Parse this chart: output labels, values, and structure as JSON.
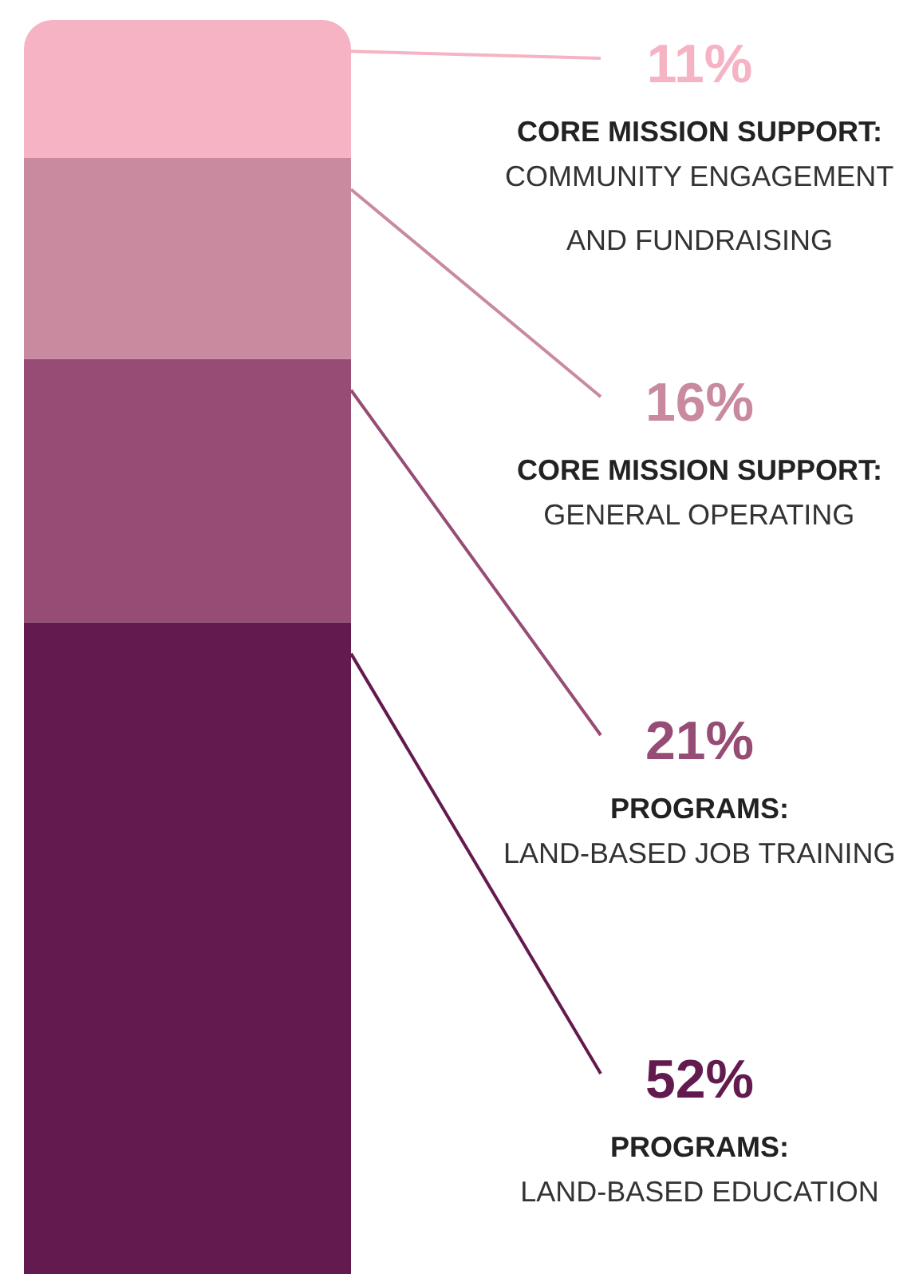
{
  "chart_data": {
    "type": "bar",
    "stacked": true,
    "categories": [
      null
    ],
    "series": [
      {
        "name": "PROGRAMS: LAND-BASED EDUCATION",
        "color": "#631a4e",
        "values": [
          52
        ],
        "value_labels": [
          "52%"
        ]
      },
      {
        "name": "PROGRAMS: LAND-BASED JOB TRAINING",
        "color": "#964c74",
        "values": [
          21
        ],
        "value_labels": [
          "21%"
        ]
      },
      {
        "name": "CORE MISSION SUPPORT: GENERAL OPERATING",
        "color": "#c98aa0",
        "values": [
          16
        ],
        "value_labels": [
          "16%"
        ]
      },
      {
        "name": "CORE MISSION SUPPORT: COMMUNITY ENGAGEMENT AND FUNDRAISING",
        "color": "#f5b3c3",
        "values": [
          11
        ],
        "value_labels": [
          "11%"
        ]
      }
    ],
    "grid": false
  }
}
